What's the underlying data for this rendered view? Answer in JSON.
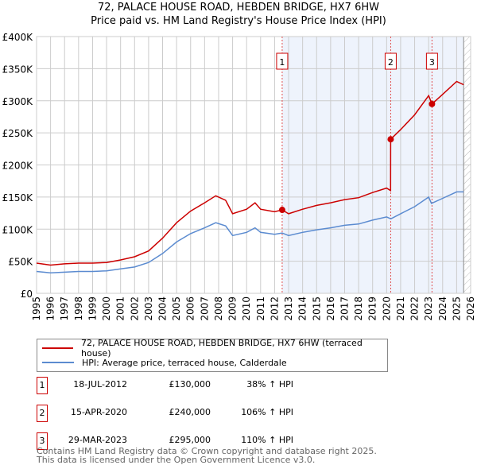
{
  "chart_data": {
    "type": "line",
    "title": "72, PALACE HOUSE ROAD, HEBDEN BRIDGE, HX7 6HW",
    "subtitle": "Price paid vs. HM Land Registry's House Price Index (HPI)",
    "xlim": [
      1995,
      2026
    ],
    "ylim": [
      0,
      400000
    ],
    "x_ticks": [
      "1995",
      "1996",
      "1997",
      "1998",
      "1999",
      "2000",
      "2001",
      "2002",
      "2003",
      "2004",
      "2005",
      "2006",
      "2007",
      "2008",
      "2009",
      "2010",
      "2011",
      "2012",
      "2013",
      "2014",
      "2015",
      "2016",
      "2017",
      "2018",
      "2019",
      "2020",
      "2021",
      "2022",
      "2023",
      "2024",
      "2025",
      "2026"
    ],
    "y_ticks": [
      {
        "v": 0,
        "label": "£0"
      },
      {
        "v": 50000,
        "label": "£50K"
      },
      {
        "v": 100000,
        "label": "£100K"
      },
      {
        "v": 150000,
        "label": "£150K"
      },
      {
        "v": 200000,
        "label": "£200K"
      },
      {
        "v": 250000,
        "label": "£250K"
      },
      {
        "v": 300000,
        "label": "£300K"
      },
      {
        "v": 350000,
        "label": "£350K"
      },
      {
        "v": 400000,
        "label": "£400K"
      }
    ],
    "grid": true,
    "shaded_from": 2012.54,
    "hatched_from": 2025.5,
    "series": [
      {
        "name": "72, PALACE HOUSE ROAD, HEBDEN BRIDGE, HX7 6HW (terraced house)",
        "color": "#cc0000",
        "x": [
          1995,
          1996,
          1997,
          1998,
          1999,
          2000,
          2001,
          2002,
          2003,
          2004,
          2005,
          2006,
          2007,
          2007.8,
          2008.5,
          2009,
          2010,
          2010.6,
          2011,
          2012,
          2012.54,
          2013,
          2014,
          2015,
          2016,
          2017,
          2018,
          2019,
          2020,
          2020.28,
          2020.29,
          2021,
          2022,
          2023,
          2023.24,
          2024,
          2025,
          2025.5
        ],
        "y": [
          47000,
          44000,
          46000,
          47000,
          47000,
          48000,
          52000,
          57000,
          66000,
          86000,
          110000,
          128000,
          141000,
          152000,
          145000,
          124000,
          131000,
          141000,
          131000,
          127000,
          130000,
          124000,
          131000,
          137000,
          141000,
          146000,
          149000,
          157000,
          164000,
          160000,
          240000,
          255000,
          278000,
          308000,
          295000,
          310000,
          330000,
          325000
        ]
      },
      {
        "name": "HPI: Average price, terraced house, Calderdale",
        "color": "#5b8bd0",
        "x": [
          1995,
          1996,
          1997,
          1998,
          1999,
          2000,
          2001,
          2002,
          2003,
          2004,
          2005,
          2006,
          2007,
          2007.8,
          2008.5,
          2009,
          2010,
          2010.6,
          2011,
          2012,
          2012.54,
          2013,
          2014,
          2015,
          2016,
          2017,
          2018,
          2019,
          2020,
          2020.3,
          2021,
          2022,
          2023,
          2023.2,
          2024,
          2025,
          2025.5
        ],
        "y": [
          34000,
          32000,
          33000,
          34000,
          34000,
          35000,
          38000,
          41000,
          48000,
          62000,
          80000,
          93000,
          102000,
          110000,
          105000,
          90000,
          95000,
          102000,
          95000,
          92000,
          94000,
          90000,
          95000,
          99000,
          102000,
          106000,
          108000,
          114000,
          119000,
          116000,
          124000,
          135000,
          150000,
          140000,
          148000,
          158000,
          158000
        ]
      }
    ],
    "sales": [
      {
        "n": "1",
        "x": 2012.54,
        "y": 130000,
        "date": "18-JUL-2012",
        "price": "£130,000",
        "hpi": "38% ↑ HPI"
      },
      {
        "n": "2",
        "x": 2020.29,
        "y": 240000,
        "date": "15-APR-2020",
        "price": "£240,000",
        "hpi": "106% ↑ HPI"
      },
      {
        "n": "3",
        "x": 2023.24,
        "y": 295000,
        "date": "29-MAR-2023",
        "price": "£295,000",
        "hpi": "110% ↑ HPI"
      }
    ]
  },
  "footer": {
    "line1": "Contains HM Land Registry data © Crown copyright and database right 2025.",
    "line2": "This data is licensed under the Open Government Licence v3.0."
  }
}
